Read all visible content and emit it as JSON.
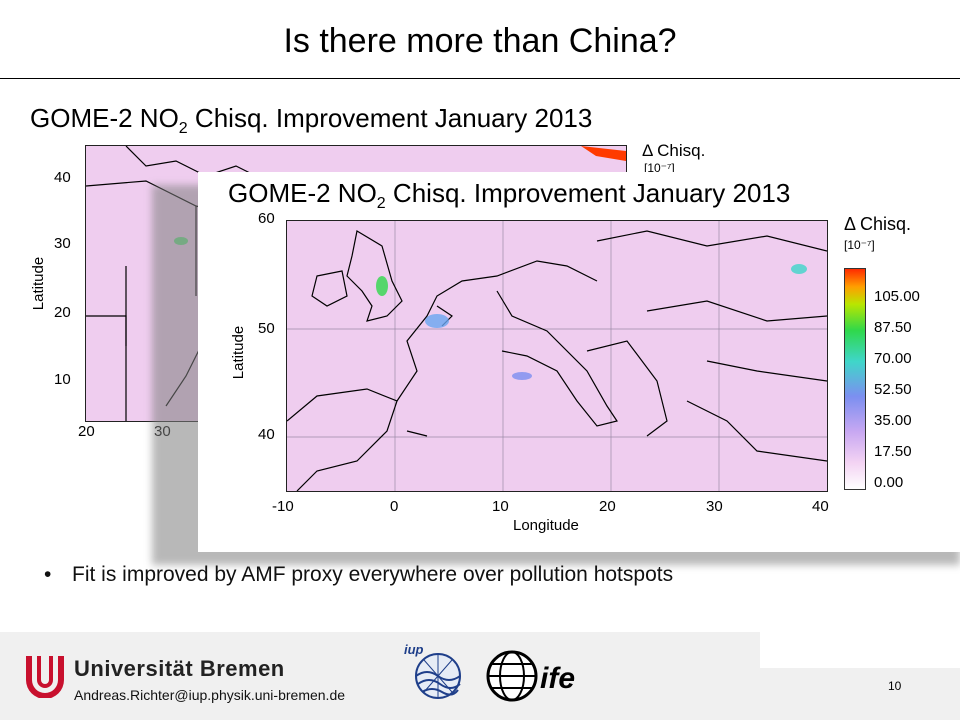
{
  "slide": {
    "title": "Is there more than China?",
    "bullet": "Fit is improved by AMF proxy everywhere over pollution hotspots",
    "page_number": "10"
  },
  "back_map": {
    "title_prefix": "GOME-2 NO",
    "title_sub": "2",
    "title_suffix": " Chisq. Improvement January 2013",
    "legend_title": "Δ Chisq.",
    "legend_unit": "[10⁻⁷]",
    "y_label": "Latitude",
    "y_ticks": [
      "40",
      "30",
      "20",
      "10"
    ],
    "x_ticks": [
      "20",
      "30"
    ]
  },
  "front_map": {
    "title_prefix": "GOME-2 NO",
    "title_sub": "2",
    "title_suffix": " Chisq. Improvement January 2013",
    "legend_title": "Δ Chisq.",
    "legend_unit": "[10⁻⁷]",
    "legend_values": [
      "105.00",
      "87.50",
      "70.00",
      "52.50",
      "35.00",
      "17.50",
      "0.00"
    ],
    "y_label": "Latitude",
    "x_label": "Longitude",
    "y_ticks": [
      "60",
      "50",
      "40"
    ],
    "x_ticks": [
      "-10",
      "0",
      "10",
      "20",
      "30",
      "40"
    ]
  },
  "footer": {
    "university": "Universität Bremen",
    "email": "Andreas.Richter@iup.physik.uni-bremen.de",
    "iup_logo_text": "iup",
    "ife_logo_text": "ife"
  },
  "colors": {
    "map_background": "#efcdef",
    "coast_lines": "#000000",
    "colorbar": [
      "#ff2b00",
      "#ff9e00",
      "#b9e600",
      "#2fd84b",
      "#3fd6c9",
      "#7c8ff0",
      "#c8a8f2",
      "#f3d3f3",
      "#ffffff"
    ]
  }
}
